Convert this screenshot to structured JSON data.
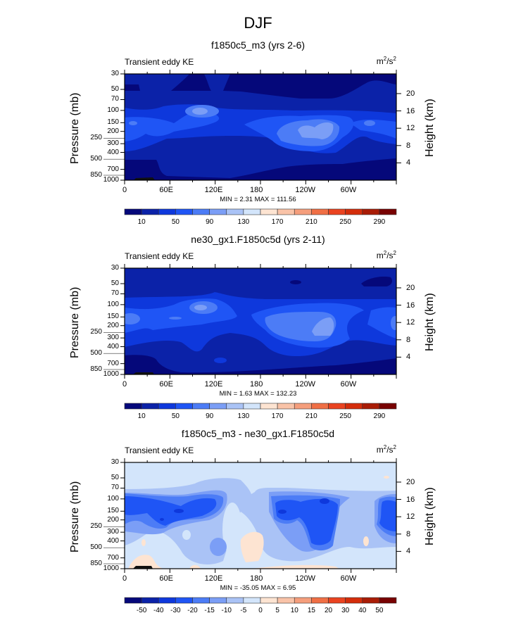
{
  "title": "DJF",
  "chart_data": [
    {
      "type": "heatmap",
      "subtitle": "f1850c5_m3 (yrs 2-6)",
      "left_label": "Transient eddy KE",
      "units": "m2/s2",
      "ylabel": "Pressure (mb)",
      "ylabel_right": "Height (km)",
      "x_ticks": [
        "0",
        "60E",
        "120E",
        "180",
        "120W",
        "60W"
      ],
      "y_ticks": [
        "30",
        "50",
        "70",
        "100",
        "150",
        "200",
        "250",
        "300",
        "400",
        "500",
        "700",
        "850",
        "1000"
      ],
      "y2_ticks": [
        "20",
        "16",
        "12",
        "8",
        "4"
      ],
      "min_max": "MIN =   2.31  MAX = 111.56",
      "min": 2.31,
      "max": 111.56,
      "colorbar_labels": [
        "10",
        "50",
        "90",
        "130",
        "170",
        "210",
        "250",
        "290"
      ],
      "colorbar_every_other": true
    },
    {
      "type": "heatmap",
      "subtitle": "ne30_gx1.F1850c5d (yrs 2-11)",
      "left_label": "Transient eddy KE",
      "units": "m2/s2",
      "ylabel": "Pressure (mb)",
      "ylabel_right": "Height (km)",
      "x_ticks": [
        "0",
        "60E",
        "120E",
        "180",
        "120W",
        "60W"
      ],
      "y_ticks": [
        "30",
        "50",
        "70",
        "100",
        "150",
        "200",
        "250",
        "300",
        "400",
        "500",
        "700",
        "850",
        "1000"
      ],
      "y2_ticks": [
        "20",
        "16",
        "12",
        "8",
        "4"
      ],
      "min_max": "MIN =   1.63  MAX = 132.23",
      "min": 1.63,
      "max": 132.23,
      "colorbar_labels": [
        "10",
        "50",
        "90",
        "130",
        "170",
        "210",
        "250",
        "290"
      ],
      "colorbar_every_other": true
    },
    {
      "type": "heatmap",
      "subtitle": "f1850c5_m3 - ne30_gx1.F1850c5d",
      "left_label": "Transient eddy KE",
      "units": "m2/s2",
      "ylabel": "Pressure (mb)",
      "ylabel_right": "Height (km)",
      "x_ticks": [
        "0",
        "60E",
        "120E",
        "180",
        "120W",
        "60W"
      ],
      "y_ticks": [
        "30",
        "50",
        "70",
        "100",
        "150",
        "200",
        "250",
        "300",
        "400",
        "500",
        "700",
        "850",
        "1000"
      ],
      "y2_ticks": [
        "20",
        "16",
        "12",
        "8",
        "4"
      ],
      "min_max": "MIN = -35.05  MAX =   6.95",
      "min": -35.05,
      "max": 6.95,
      "colorbar_labels": [
        "-50",
        "-40",
        "-30",
        "-20",
        "-15",
        "-10",
        "-5",
        "0",
        "5",
        "10",
        "15",
        "20",
        "30",
        "40",
        "50"
      ],
      "colorbar_every_other": false
    }
  ],
  "colors": [
    "#05087a",
    "#0b22a8",
    "#0e38dc",
    "#1f55f5",
    "#4c7cf6",
    "#7b9ef6",
    "#aac3f6",
    "#d3e5fb",
    "#fde4d2",
    "#f9c3a8",
    "#f59e7c",
    "#f06f45",
    "#ea4320",
    "#d42d0b",
    "#a91c06",
    "#780202"
  ]
}
